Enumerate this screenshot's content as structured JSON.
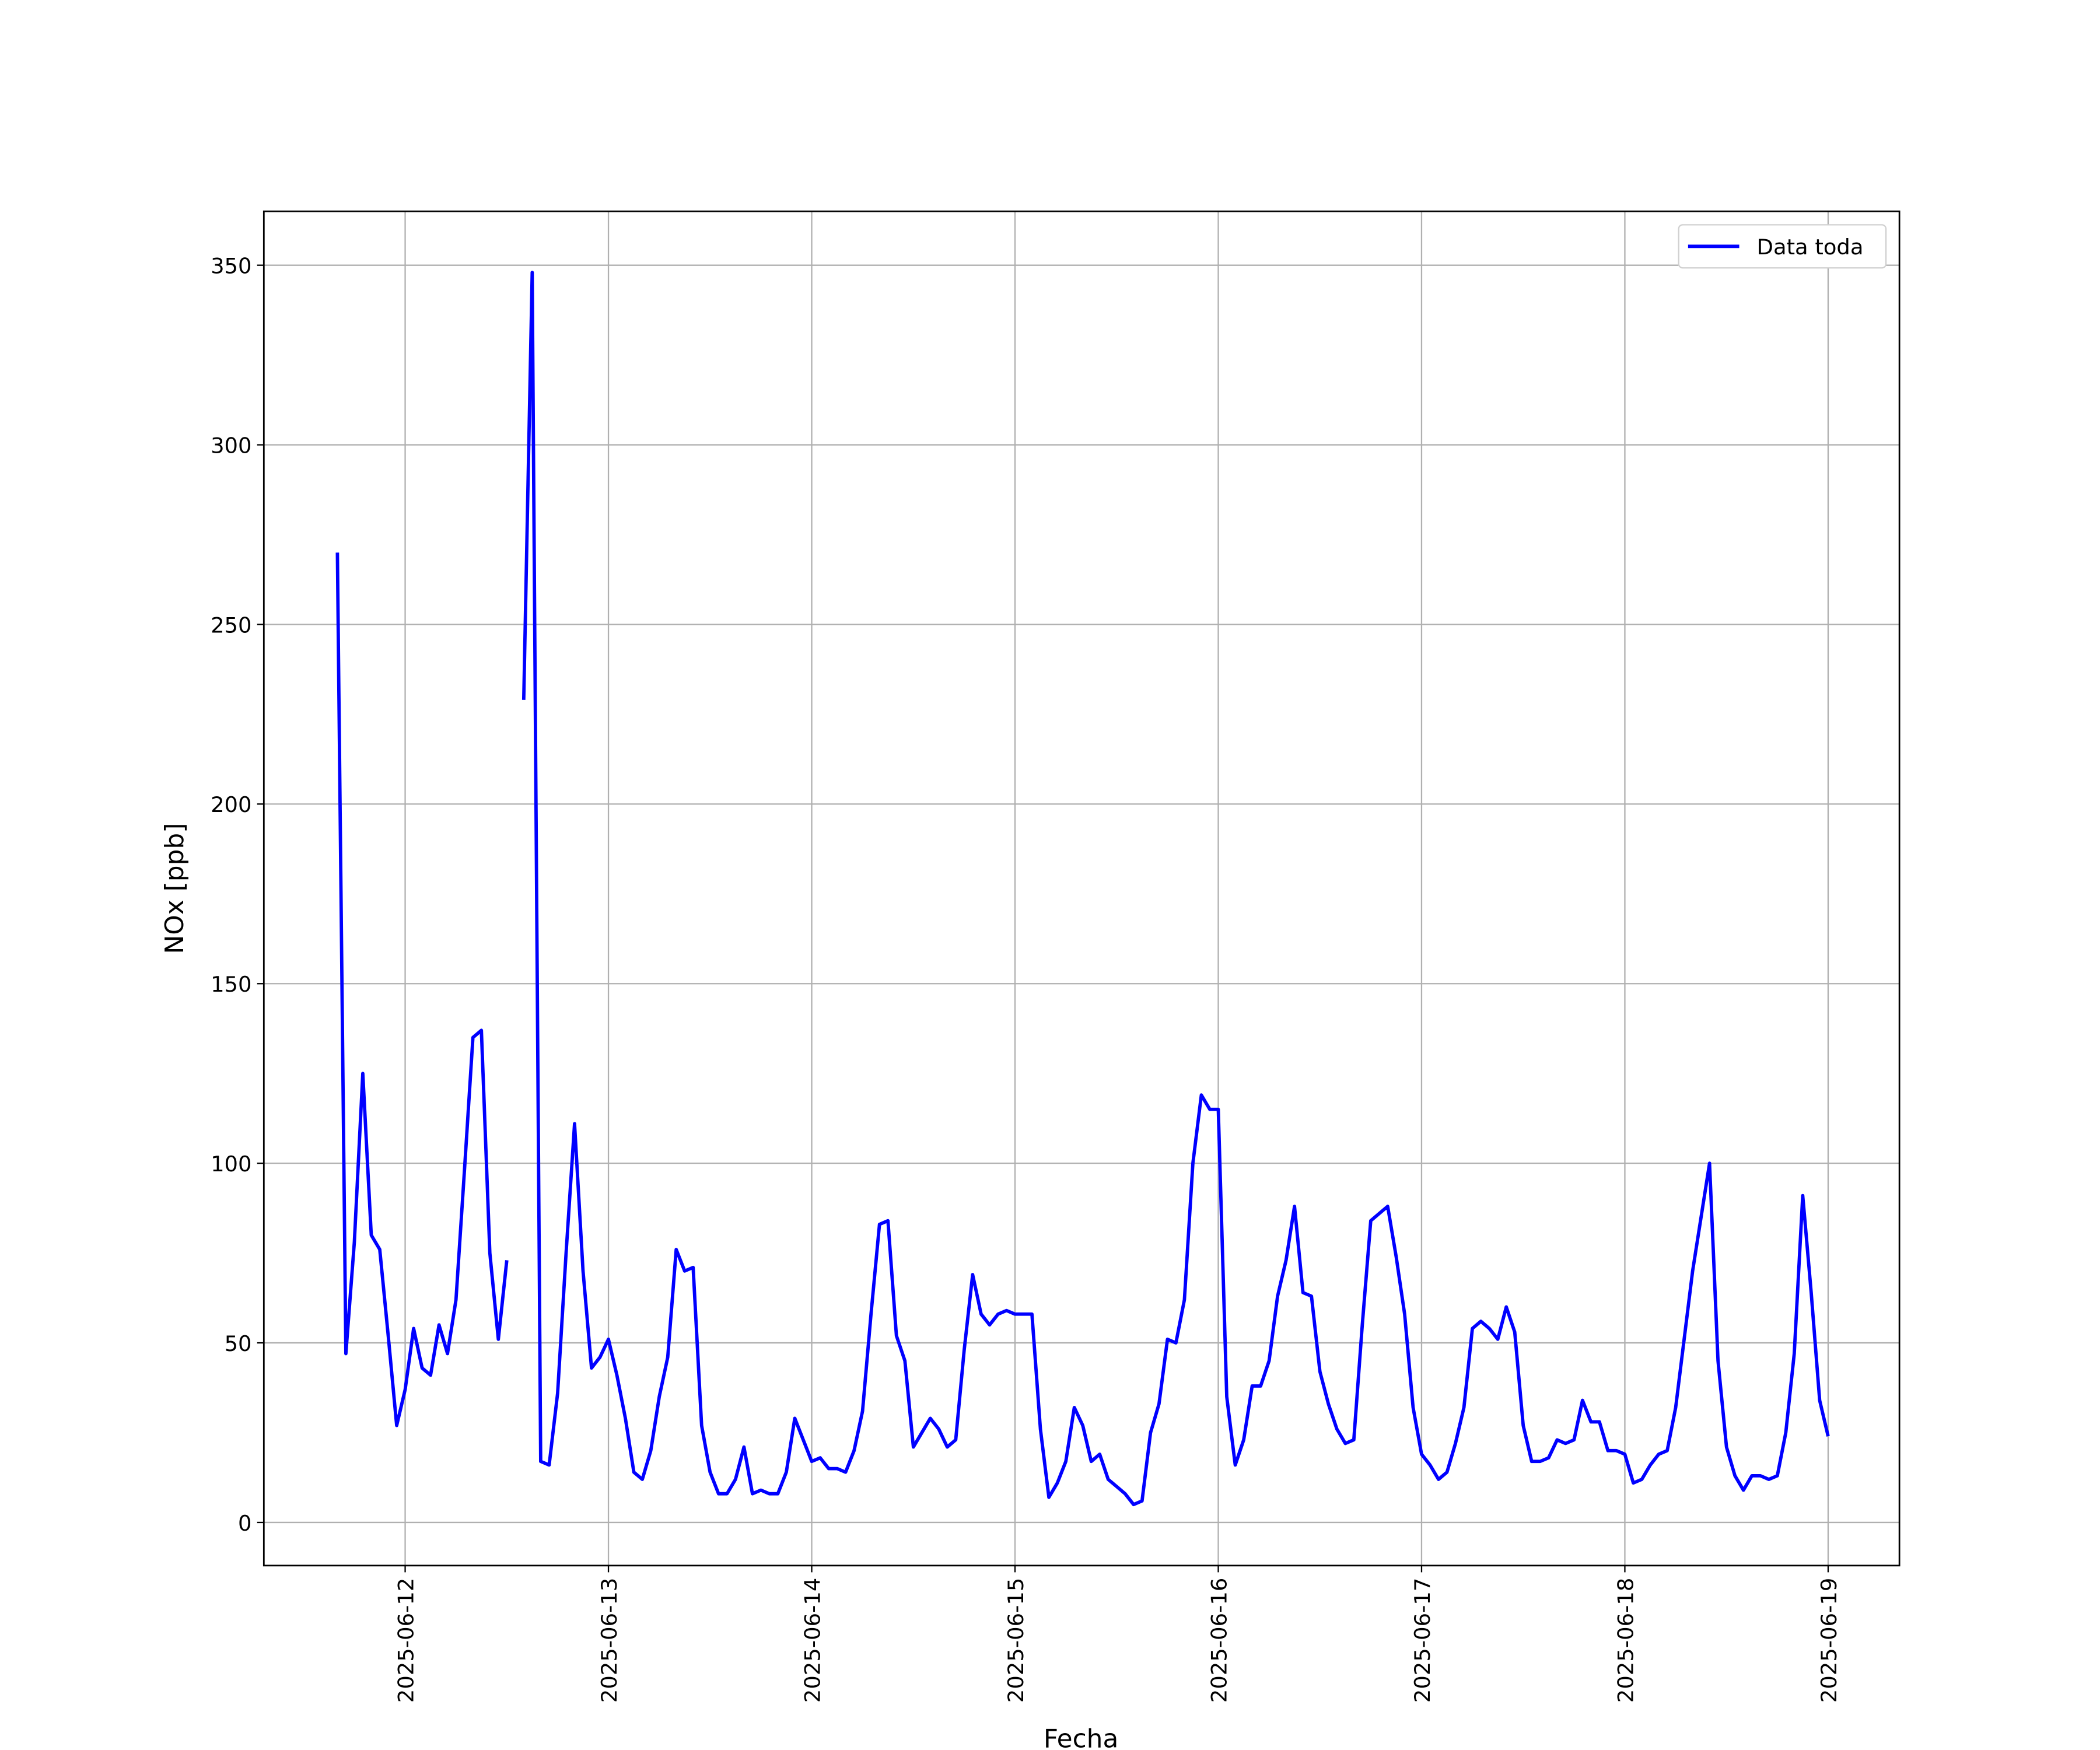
{
  "chart_data": {
    "type": "line",
    "xlabel": "Fecha",
    "ylabel": "NOx [ppb]",
    "x": [
      "2025-06-11T16:00",
      "2025-06-11T17:00",
      "2025-06-11T18:00",
      "2025-06-11T19:00",
      "2025-06-11T20:00",
      "2025-06-11T21:00",
      "2025-06-11T22:00",
      "2025-06-11T23:00",
      "2025-06-12T00:00",
      "2025-06-12T01:00",
      "2025-06-12T02:00",
      "2025-06-12T03:00",
      "2025-06-12T04:00",
      "2025-06-12T05:00",
      "2025-06-12T06:00",
      "2025-06-12T07:00",
      "2025-06-12T08:00",
      "2025-06-12T09:00",
      "2025-06-12T10:00",
      "2025-06-12T11:00",
      "2025-06-12T12:00",
      "2025-06-12T13:00",
      "2025-06-12T14:00",
      "2025-06-12T15:00",
      "2025-06-12T16:00",
      "2025-06-12T17:00",
      "2025-06-12T18:00",
      "2025-06-12T19:00",
      "2025-06-12T20:00",
      "2025-06-12T21:00",
      "2025-06-12T22:00",
      "2025-06-12T23:00",
      "2025-06-13T00:00",
      "2025-06-13T01:00",
      "2025-06-13T02:00",
      "2025-06-13T03:00",
      "2025-06-13T04:00",
      "2025-06-13T05:00",
      "2025-06-13T06:00",
      "2025-06-13T07:00",
      "2025-06-13T08:00",
      "2025-06-13T09:00",
      "2025-06-13T10:00",
      "2025-06-13T11:00",
      "2025-06-13T12:00",
      "2025-06-13T13:00",
      "2025-06-13T14:00",
      "2025-06-13T15:00",
      "2025-06-13T16:00",
      "2025-06-13T17:00",
      "2025-06-13T18:00",
      "2025-06-13T19:00",
      "2025-06-13T20:00",
      "2025-06-13T21:00",
      "2025-06-13T22:00",
      "2025-06-13T23:00",
      "2025-06-14T00:00",
      "2025-06-14T01:00",
      "2025-06-14T02:00",
      "2025-06-14T03:00",
      "2025-06-14T04:00",
      "2025-06-14T05:00",
      "2025-06-14T06:00",
      "2025-06-14T07:00",
      "2025-06-14T08:00",
      "2025-06-14T09:00",
      "2025-06-14T10:00",
      "2025-06-14T11:00",
      "2025-06-14T12:00",
      "2025-06-14T13:00",
      "2025-06-14T14:00",
      "2025-06-14T15:00",
      "2025-06-14T16:00",
      "2025-06-14T17:00",
      "2025-06-14T18:00",
      "2025-06-14T19:00",
      "2025-06-14T20:00",
      "2025-06-14T21:00",
      "2025-06-14T22:00",
      "2025-06-14T23:00",
      "2025-06-15T00:00",
      "2025-06-15T01:00",
      "2025-06-15T02:00",
      "2025-06-15T03:00",
      "2025-06-15T04:00",
      "2025-06-15T05:00",
      "2025-06-15T06:00",
      "2025-06-15T07:00",
      "2025-06-15T08:00",
      "2025-06-15T09:00",
      "2025-06-15T10:00",
      "2025-06-15T11:00",
      "2025-06-15T12:00",
      "2025-06-15T13:00",
      "2025-06-15T14:00",
      "2025-06-15T15:00",
      "2025-06-15T16:00",
      "2025-06-15T17:00",
      "2025-06-15T18:00",
      "2025-06-15T19:00",
      "2025-06-15T20:00",
      "2025-06-15T21:00",
      "2025-06-15T22:00",
      "2025-06-15T23:00",
      "2025-06-16T00:00",
      "2025-06-16T01:00",
      "2025-06-16T02:00",
      "2025-06-16T03:00",
      "2025-06-16T04:00",
      "2025-06-16T05:00",
      "2025-06-16T06:00",
      "2025-06-16T07:00",
      "2025-06-16T08:00",
      "2025-06-16T09:00",
      "2025-06-16T10:00",
      "2025-06-16T11:00",
      "2025-06-16T12:00",
      "2025-06-16T13:00",
      "2025-06-16T14:00",
      "2025-06-16T15:00",
      "2025-06-16T16:00",
      "2025-06-16T17:00",
      "2025-06-16T18:00",
      "2025-06-16T19:00",
      "2025-06-16T20:00",
      "2025-06-16T21:00",
      "2025-06-16T22:00",
      "2025-06-16T23:00",
      "2025-06-17T00:00",
      "2025-06-17T01:00",
      "2025-06-17T02:00",
      "2025-06-17T03:00",
      "2025-06-17T04:00",
      "2025-06-17T05:00",
      "2025-06-17T06:00",
      "2025-06-17T07:00",
      "2025-06-17T08:00",
      "2025-06-17T09:00",
      "2025-06-17T10:00",
      "2025-06-17T11:00",
      "2025-06-17T12:00",
      "2025-06-17T13:00",
      "2025-06-17T14:00",
      "2025-06-17T15:00",
      "2025-06-17T16:00",
      "2025-06-17T17:00",
      "2025-06-17T18:00",
      "2025-06-17T19:00",
      "2025-06-17T20:00",
      "2025-06-17T21:00",
      "2025-06-17T22:00",
      "2025-06-17T23:00",
      "2025-06-18T00:00",
      "2025-06-18T01:00",
      "2025-06-18T02:00",
      "2025-06-18T03:00",
      "2025-06-18T04:00",
      "2025-06-18T05:00",
      "2025-06-18T06:00",
      "2025-06-18T07:00",
      "2025-06-18T08:00",
      "2025-06-18T09:00",
      "2025-06-18T10:00",
      "2025-06-18T11:00",
      "2025-06-18T12:00",
      "2025-06-18T13:00",
      "2025-06-18T14:00",
      "2025-06-18T15:00",
      "2025-06-18T16:00",
      "2025-06-18T17:00",
      "2025-06-18T18:00",
      "2025-06-18T19:00",
      "2025-06-18T20:00",
      "2025-06-18T21:00",
      "2025-06-18T22:00",
      "2025-06-18T23:00",
      "2025-06-19T00:00"
    ],
    "series": [
      {
        "name": "Data toda",
        "color": "#0000ff",
        "values": [
          270,
          47,
          78,
          125,
          80,
          76,
          52,
          27,
          37,
          54,
          43,
          41,
          55,
          47,
          62,
          98,
          135,
          137,
          75,
          51,
          73,
          null,
          229,
          348,
          17,
          16,
          36,
          75,
          111,
          70,
          43,
          46,
          51,
          41,
          29,
          14,
          12,
          20,
          35,
          46,
          76,
          70,
          71,
          27,
          14,
          8,
          8,
          12,
          21,
          8,
          9,
          8,
          8,
          14,
          29,
          23,
          17,
          18,
          15,
          15,
          14,
          20,
          31,
          58,
          83,
          84,
          52,
          45,
          21,
          25,
          29,
          26,
          21,
          23,
          48,
          69,
          58,
          55,
          58,
          59,
          58,
          58,
          58,
          26,
          7,
          11,
          17,
          32,
          27,
          17,
          19,
          12,
          10,
          8,
          5,
          6,
          25,
          33,
          51,
          50,
          62,
          100,
          119,
          115,
          115,
          35,
          16,
          23,
          38,
          38,
          45,
          63,
          73,
          88,
          64,
          63,
          42,
          33,
          26,
          22,
          23,
          55,
          84,
          86,
          88,
          74,
          58,
          32,
          19,
          16,
          12,
          14,
          22,
          32,
          54,
          56,
          54,
          51,
          60,
          53,
          27,
          17,
          17,
          18,
          23,
          22,
          23,
          34,
          28,
          28,
          20,
          20,
          19,
          11,
          12,
          16,
          19,
          20,
          32,
          51,
          70,
          85,
          100,
          45,
          21,
          13,
          9,
          13,
          13,
          12,
          13,
          25,
          47,
          91,
          64,
          34,
          24
        ]
      }
    ],
    "xlim": [
      "2025-06-11T07:19",
      "2025-06-19T08:25"
    ],
    "xticks": [
      "2025-06-12",
      "2025-06-13",
      "2025-06-14",
      "2025-06-15",
      "2025-06-16",
      "2025-06-17",
      "2025-06-18",
      "2025-06-19"
    ],
    "ylim": [
      -12,
      365
    ],
    "yticks": [
      0,
      50,
      100,
      150,
      200,
      250,
      300,
      350
    ],
    "grid": true,
    "legend": "upper right"
  }
}
